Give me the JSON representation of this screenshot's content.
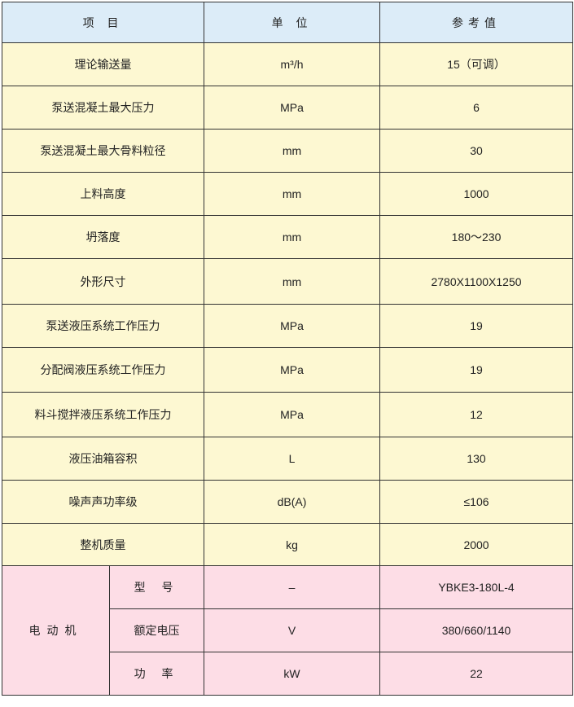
{
  "header": {
    "item": "项 目",
    "unit": "单 位",
    "value": "参考值"
  },
  "rows": [
    {
      "item": "理论输送量",
      "unit": "m³/h",
      "value": "15（可调）"
    },
    {
      "item": "泵送混凝土最大压力",
      "unit": "MPa",
      "value": "6"
    },
    {
      "item": "泵送混凝土最大骨料粒径",
      "unit": "mm",
      "value": "30"
    },
    {
      "item": "上料高度",
      "unit": "mm",
      "value": "1000"
    },
    {
      "item": "坍落度",
      "unit": "mm",
      "value": "180～230"
    },
    {
      "item": "外形尺寸",
      "unit": "mm",
      "value": "2780X1100X1250"
    },
    {
      "item": "泵送液压系统工作压力",
      "unit": "MPa",
      "value": "19"
    },
    {
      "item": "分配阀液压系统工作压力",
      "unit": "MPa",
      "value": "19"
    },
    {
      "item": "料斗搅拌液压系统工作压力",
      "unit": "MPa",
      "value": "12"
    },
    {
      "item": "液压油箱容积",
      "unit": "L",
      "value": "130"
    },
    {
      "item": "噪声声功率级",
      "unit": "dB(A)",
      "value": "≤106"
    },
    {
      "item": "整机质量",
      "unit": "kg",
      "value": "2000"
    }
  ],
  "motor": {
    "label": "电动机",
    "rows": [
      {
        "item": "型 号",
        "unit": "–",
        "value": "YBKE3-180L-4"
      },
      {
        "item": "额定电压",
        "unit": "V",
        "value": "380/660/1140"
      },
      {
        "item": "功 率",
        "unit": "kW",
        "value": "22"
      }
    ]
  },
  "colors": {
    "header_bg": "#dcecf8",
    "row_bg": "#fdf8d2",
    "motor_bg": "#fddde6"
  }
}
